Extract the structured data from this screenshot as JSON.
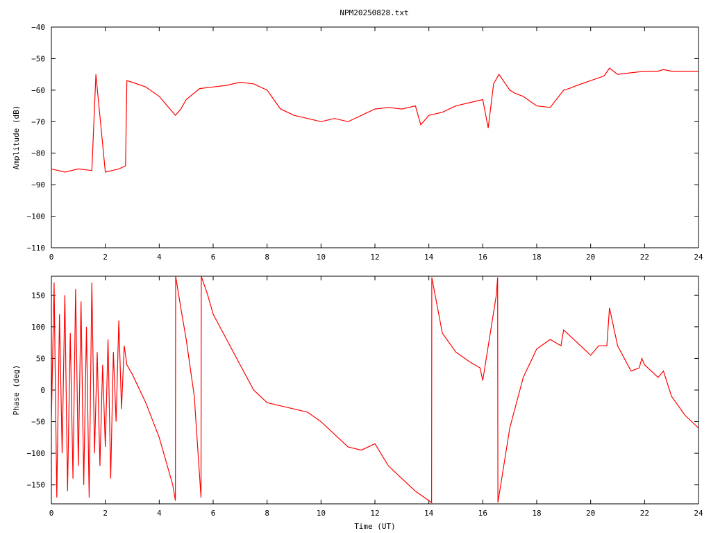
{
  "title": "NPM20250828.txt",
  "colors": {
    "series": "#ff0000",
    "axis": "#000000",
    "background": "#ffffff"
  },
  "chart_data": [
    {
      "type": "line",
      "title": "NPM20250828.txt",
      "xlabel": "",
      "ylabel": "Amplitude (dB)",
      "xlim": [
        0,
        24
      ],
      "ylim": [
        -110,
        -40
      ],
      "xticks": [
        0,
        2,
        4,
        6,
        8,
        10,
        12,
        14,
        16,
        18,
        20,
        22,
        24
      ],
      "yticks": [
        -110,
        -100,
        -90,
        -80,
        -70,
        -60,
        -50,
        -40
      ],
      "grid": false,
      "series": [
        {
          "x": [
            0,
            0.5,
            1.0,
            1.5,
            1.65,
            2.0,
            2.5,
            2.75,
            2.8,
            3.0,
            3.5,
            4.0,
            4.5,
            4.6,
            4.8,
            5.0,
            5.5,
            6.0,
            6.5,
            7.0,
            7.5,
            8.0,
            8.5,
            9.0,
            9.5,
            10.0,
            10.5,
            11.0,
            11.5,
            12.0,
            12.5,
            13.0,
            13.5,
            13.7,
            14.0,
            14.5,
            15.0,
            15.5,
            16.0,
            16.2,
            16.4,
            16.6,
            17.0,
            17.2,
            17.5,
            18.0,
            18.5,
            19.0,
            19.2,
            19.5,
            20.0,
            20.5,
            20.7,
            21.0,
            21.5,
            22.0,
            22.5,
            22.7,
            23.0,
            23.5,
            24.0
          ],
          "y": [
            -85,
            -86,
            -85,
            -85.5,
            -55,
            -86,
            -85,
            -84,
            -57,
            -57.5,
            -59,
            -62,
            -67,
            -68,
            -66,
            -63,
            -59.5,
            -59,
            -58.5,
            -57.5,
            -58,
            -60,
            -66,
            -68,
            -69,
            -70,
            -69,
            -70,
            -68,
            -66,
            -65.5,
            -66,
            -65,
            -71,
            -68,
            -67,
            -65,
            -64,
            -63,
            -72,
            -58,
            -55,
            -60,
            -61,
            -62,
            -65,
            -65.5,
            -60,
            -59.5,
            -58.5,
            -57,
            -55.5,
            -53,
            -55,
            -54.5,
            -54,
            -54,
            -53.5,
            -54,
            -54,
            -54
          ]
        }
      ]
    },
    {
      "type": "line",
      "title": "",
      "xlabel": "Time (UT)",
      "ylabel": "Phase (deg)",
      "xlim": [
        0,
        24
      ],
      "ylim": [
        -180,
        180
      ],
      "xticks": [
        0,
        2,
        4,
        6,
        8,
        10,
        12,
        14,
        16,
        18,
        20,
        22,
        24
      ],
      "yticks": [
        -150,
        -100,
        -50,
        0,
        50,
        100,
        150
      ],
      "grid": false,
      "series": [
        {
          "x": [
            0,
            0.1,
            0.2,
            0.3,
            0.4,
            0.5,
            0.6,
            0.7,
            0.8,
            0.9,
            1.0,
            1.1,
            1.2,
            1.3,
            1.4,
            1.5,
            1.6,
            1.7,
            1.8,
            1.9,
            2.0,
            2.1,
            2.2,
            2.3,
            2.4,
            2.5,
            2.6,
            2.7,
            2.8,
            3.0,
            3.5,
            4.0,
            4.5,
            4.6,
            4.61,
            4.8,
            5.0,
            5.3,
            5.55,
            5.56,
            5.8,
            6.0,
            6.5,
            7.0,
            7.5,
            8.0,
            8.5,
            9.0,
            9.5,
            10.0,
            10.5,
            11.0,
            11.5,
            12.0,
            12.5,
            13.0,
            13.5,
            14.0,
            14.1,
            14.11,
            14.5,
            15.0,
            15.5,
            15.9,
            16.0,
            16.5,
            16.55,
            16.56,
            17.0,
            17.5,
            18.0,
            18.5,
            18.9,
            19.0,
            19.5,
            20.0,
            20.3,
            20.6,
            20.7,
            21.0,
            21.5,
            21.8,
            21.9,
            22.0,
            22.5,
            22.7,
            23.0,
            23.5,
            24.0
          ],
          "y": [
            -50,
            170,
            -170,
            120,
            -100,
            150,
            -160,
            90,
            -140,
            160,
            -120,
            140,
            -150,
            100,
            -170,
            170,
            -100,
            60,
            -120,
            40,
            -90,
            80,
            -140,
            60,
            -50,
            110,
            -30,
            70,
            40,
            25,
            -20,
            -75,
            -150,
            -175,
            180,
            130,
            80,
            -10,
            -170,
            180,
            150,
            120,
            80,
            40,
            0,
            -20,
            -25,
            -30,
            -35,
            -50,
            -70,
            -90,
            -95,
            -85,
            -120,
            -140,
            -160,
            -175,
            -178,
            178,
            90,
            60,
            45,
            35,
            15,
            150,
            178,
            -178,
            -60,
            20,
            65,
            80,
            70,
            95,
            75,
            55,
            70,
            70,
            130,
            70,
            30,
            35,
            50,
            40,
            20,
            30,
            -10,
            -40,
            -60
          ]
        }
      ]
    }
  ]
}
